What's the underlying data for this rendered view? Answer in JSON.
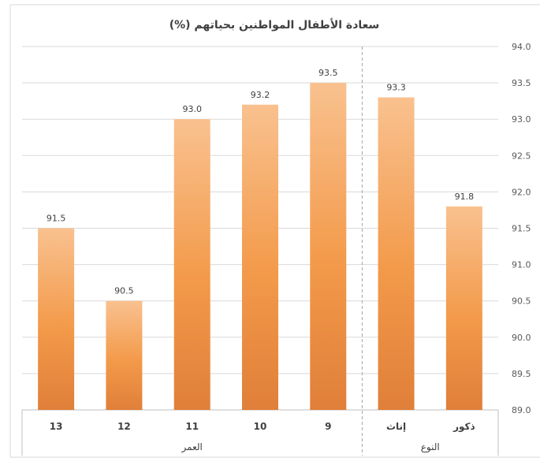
{
  "chart_data": {
    "type": "bar",
    "title": "سعادة الأطفال المواطنين بحياتهم  (%)",
    "categories": [
      "13",
      "12",
      "11",
      "10",
      "9",
      "إناث",
      "ذكور"
    ],
    "groups": [
      {
        "label": "العمر",
        "categories": [
          "13",
          "12",
          "11",
          "10",
          "9"
        ]
      },
      {
        "label": "النوع",
        "categories": [
          "إناث",
          "ذكور"
        ]
      }
    ],
    "values": [
      91.5,
      90.5,
      93.0,
      93.2,
      93.5,
      93.3,
      91.8
    ],
    "value_labels": [
      "91.5",
      "90.5",
      "93.0",
      "93.2",
      "93.5",
      "93.3",
      "91.8"
    ],
    "ylim": [
      89.0,
      94.0
    ],
    "yticks": [
      "89.0",
      "89.5",
      "90.0",
      "90.5",
      "91.0",
      "91.5",
      "92.0",
      "92.5",
      "93.0",
      "93.5",
      "94.0"
    ],
    "yaxis_position": "right",
    "grid": true,
    "legend": "none",
    "colors": {
      "bar_top": "#f9c18f",
      "bar_mid": "#f39a4a",
      "bar_bottom": "#e07f39"
    }
  }
}
